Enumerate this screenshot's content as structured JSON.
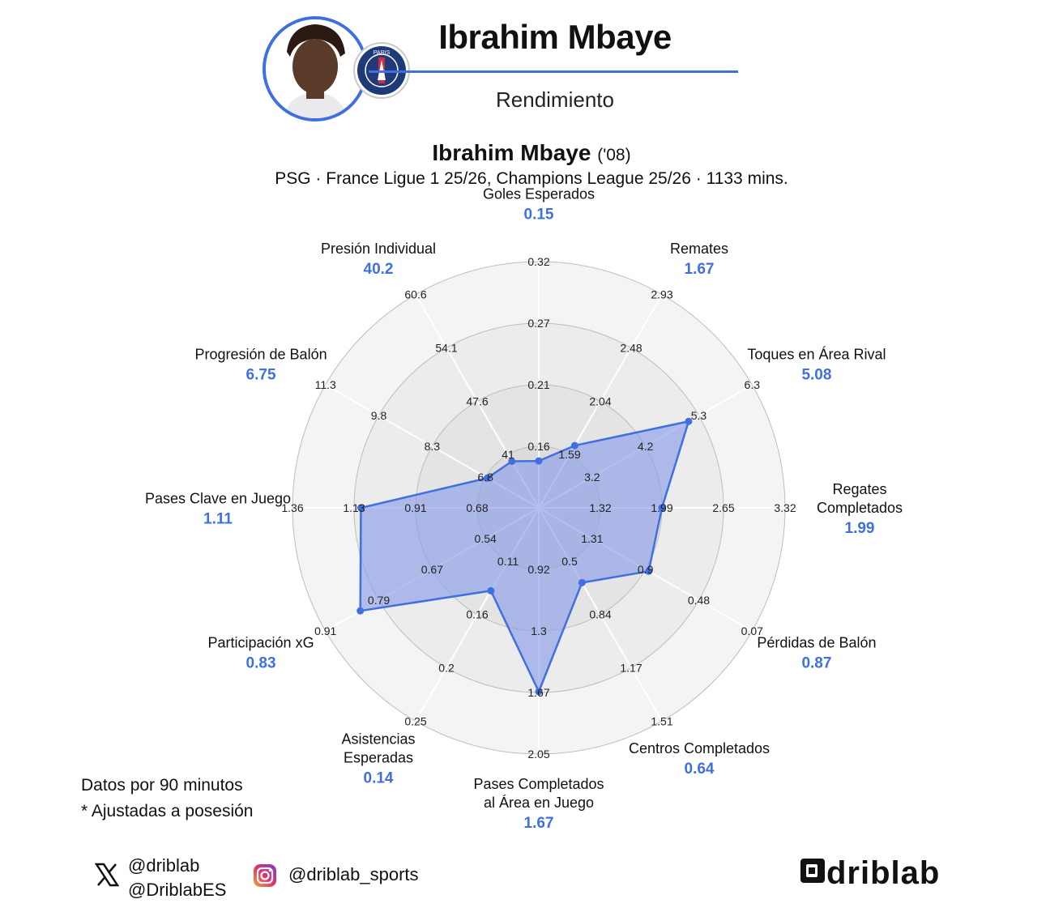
{
  "header": {
    "player_name": "Ibrahim Mbaye",
    "subtitle": "Rendimiento"
  },
  "chart_data": {
    "type": "radar",
    "title": "Ibrahim Mbaye",
    "title_suffix": "('08)",
    "subtitle": "PSG · France Ligue 1 25/26, Champions League 25/26 · 1133 mins.",
    "accent_color": "#3f6fe0",
    "fill_color": "#8c9ee8",
    "grid": true,
    "axes": [
      {
        "label": "Goles Esperados",
        "value": "0.15",
        "v": 0.15,
        "ticks": [
          "0.16",
          "0.21",
          "0.27",
          "0.32"
        ],
        "min": 0.11,
        "max": 0.32
      },
      {
        "label": "Remates",
        "value": "1.67",
        "v": 1.67,
        "ticks": [
          "1.59",
          "2.04",
          "2.48",
          "2.93"
        ],
        "min": 1.15,
        "max": 2.93
      },
      {
        "label": "Toques en Área Rival",
        "value": "5.08",
        "v": 5.08,
        "ticks": [
          "3.2",
          "4.2",
          "5.3",
          "6.3"
        ],
        "min": 2.2,
        "max": 6.3
      },
      {
        "label": "Regates\nCompletados",
        "value": "1.99",
        "v": 1.99,
        "ticks": [
          "1.32",
          "1.99",
          "2.65",
          "3.32"
        ],
        "min": 0.66,
        "max": 3.32
      },
      {
        "label": "Pérdidas de Balón",
        "value": "0.87",
        "v": 0.87,
        "ticks": [
          "1.31",
          "0.9",
          "0.48",
          "0.07"
        ],
        "min": 1.72,
        "max": 0.07
      },
      {
        "label": "Centros Completados",
        "value": "0.64",
        "v": 0.64,
        "ticks": [
          "0.5",
          "0.84",
          "1.17",
          "1.51"
        ],
        "min": 0.17,
        "max": 1.51
      },
      {
        "label": "Pases Completados\nal Área en Juego",
        "value": "1.67",
        "v": 1.67,
        "ticks": [
          "0.92",
          "1.3",
          "1.67",
          "2.05"
        ],
        "min": 0.55,
        "max": 2.05
      },
      {
        "label": "Asistencias\nEsperadas",
        "value": "0.14",
        "v": 0.14,
        "ticks": [
          "0.11",
          "0.16",
          "0.2",
          "0.25"
        ],
        "min": 0.07,
        "max": 0.25
      },
      {
        "label": "Participación xG",
        "value": "0.83",
        "v": 0.83,
        "ticks": [
          "0.54",
          "0.67",
          "0.79",
          "0.91"
        ],
        "min": 0.42,
        "max": 0.91
      },
      {
        "label": "Pases Clave en Juego",
        "value": "1.11",
        "v": 1.11,
        "ticks": [
          "0.68",
          "0.91",
          "1.13",
          "1.36"
        ],
        "min": 0.46,
        "max": 1.36
      },
      {
        "label": "Progresión de Balón",
        "value": "6.75",
        "v": 6.75,
        "ticks": [
          "6.8",
          "8.3",
          "9.8",
          "11.3"
        ],
        "min": 5.3,
        "max": 11.3
      },
      {
        "label": "Presión Individual",
        "value": "40.2",
        "v": 40.2,
        "ticks": [
          "41",
          "47.6",
          "54.1",
          "60.6"
        ],
        "min": 34.5,
        "max": 60.6
      }
    ]
  },
  "notes": {
    "line1": "Datos por 90 minutos",
    "line2": "* Ajustadas a posesión"
  },
  "social": {
    "x_handle_1": "@driblab",
    "x_handle_2": "@DriblabES",
    "instagram_handle": "@driblab_sports",
    "brand": "driblab"
  }
}
